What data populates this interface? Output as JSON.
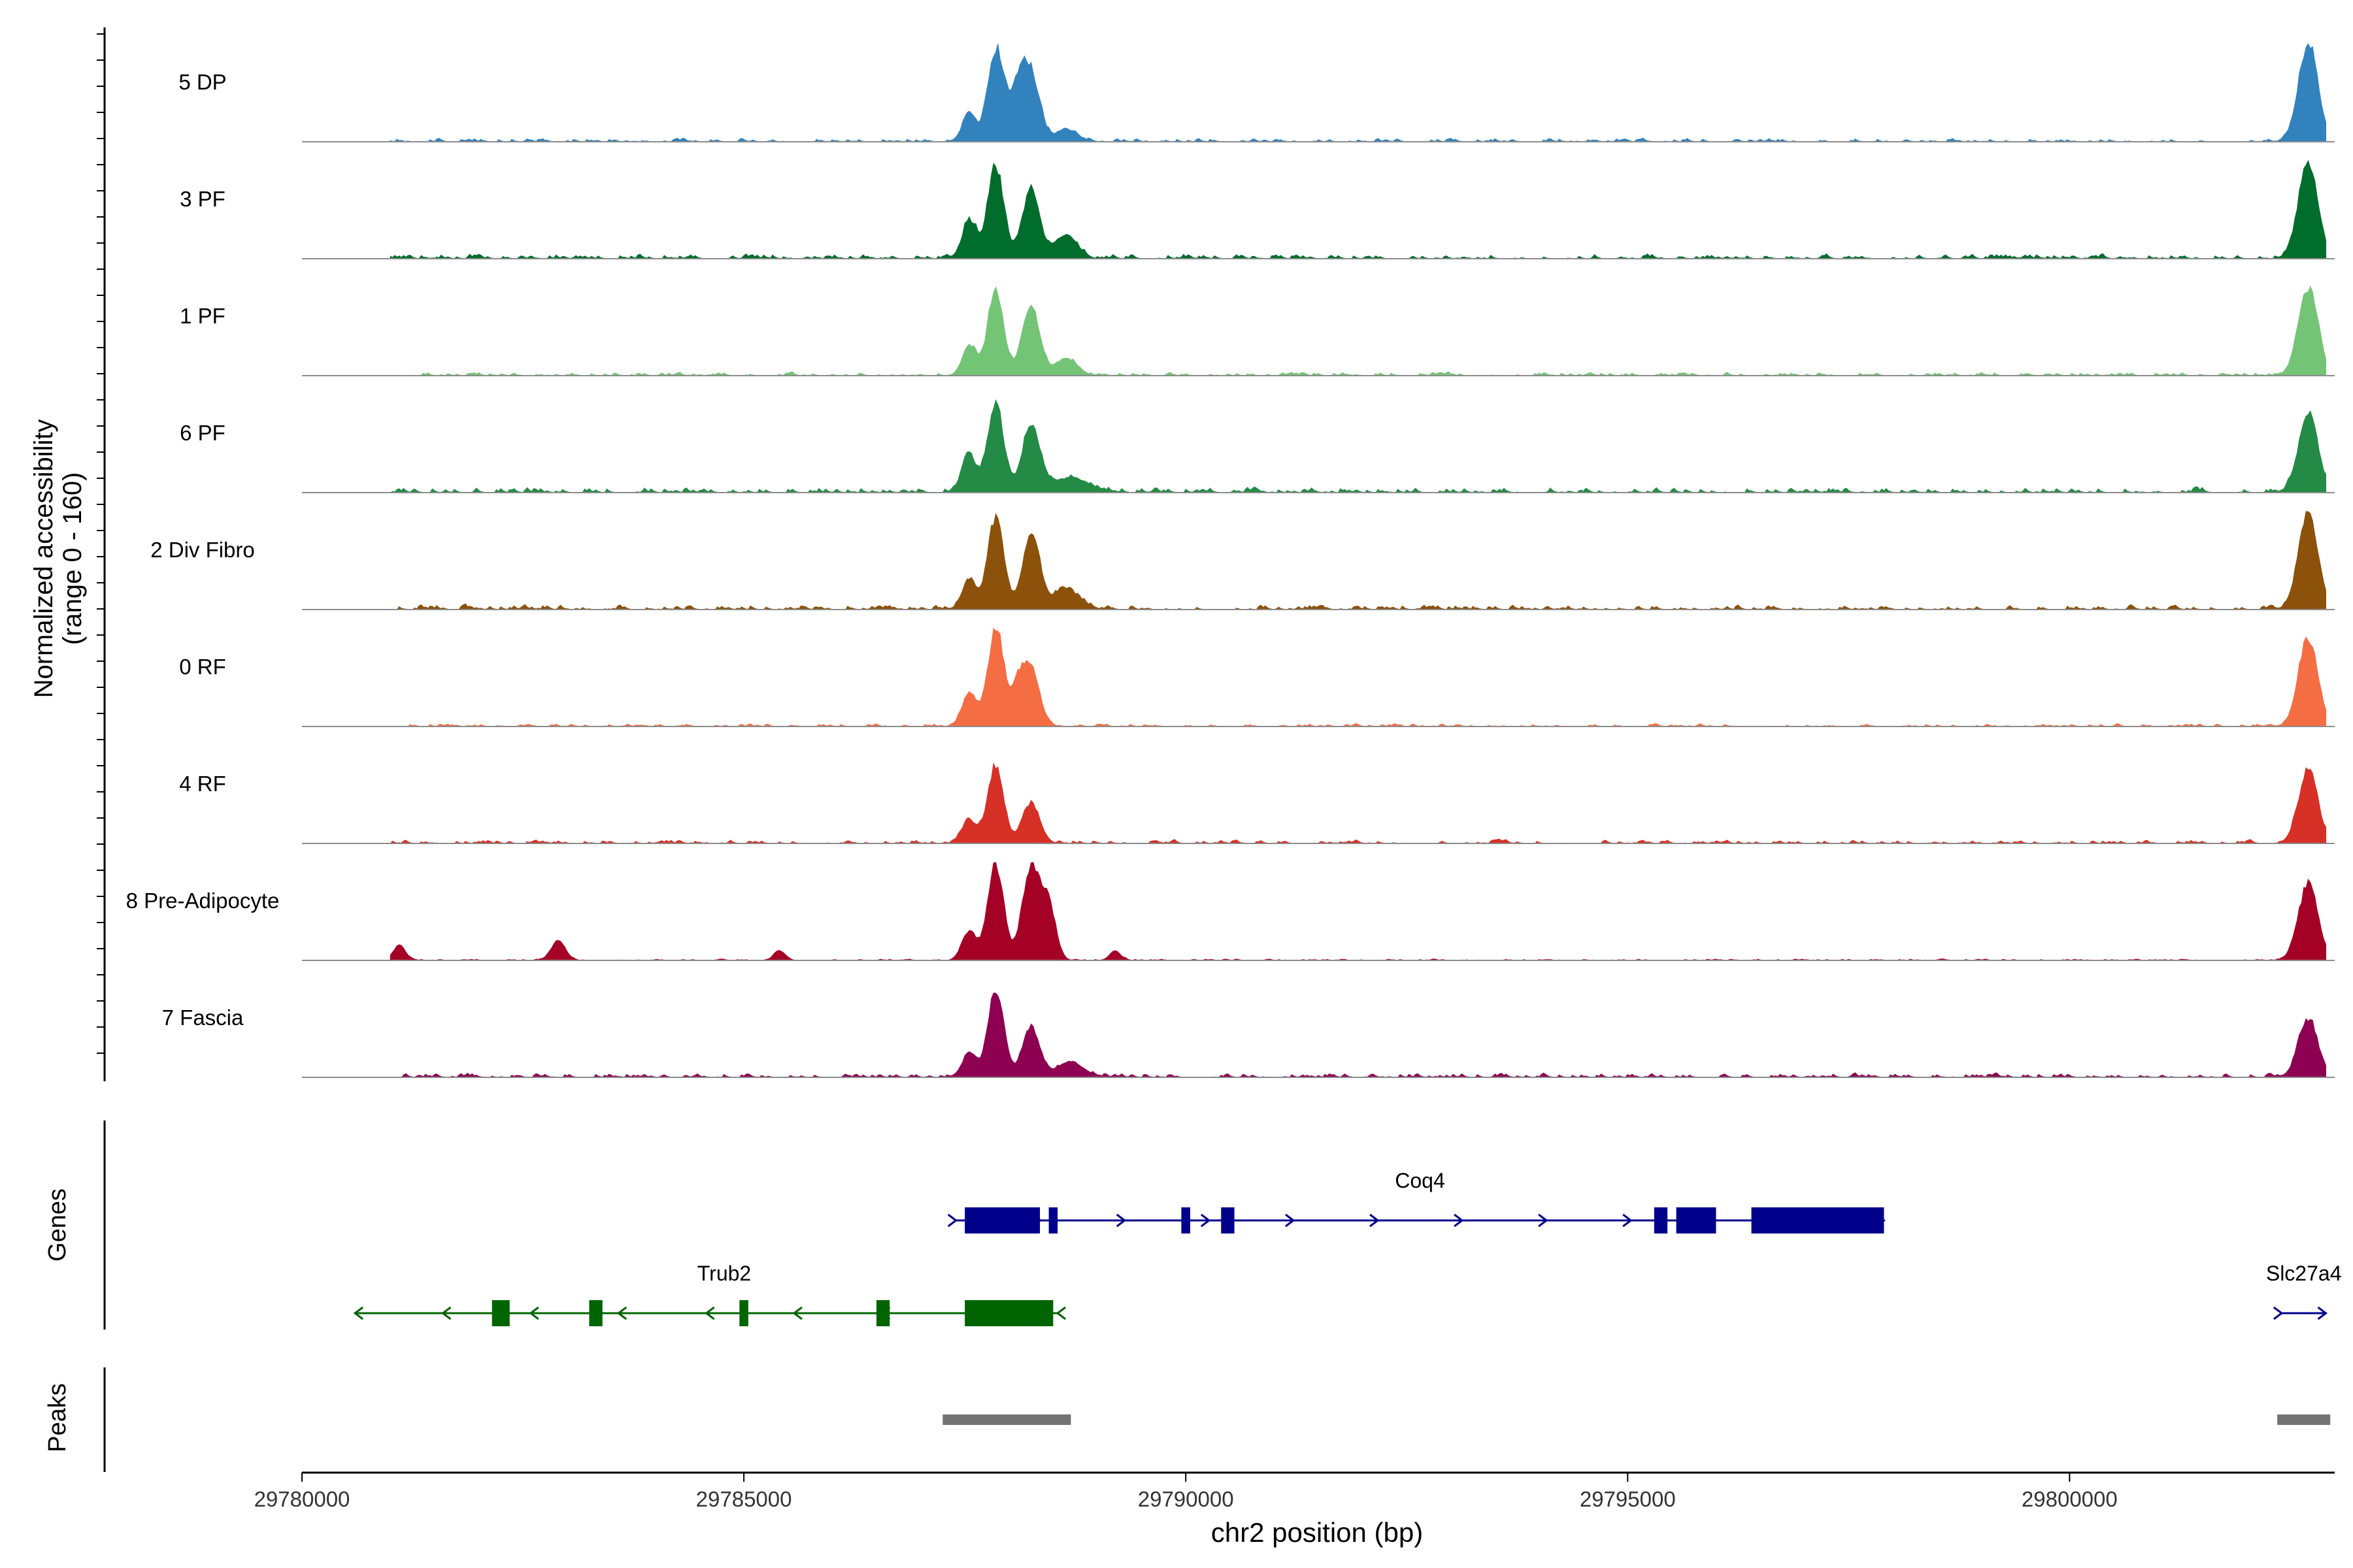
{
  "chart_data": {
    "type": "coverage",
    "region": "chr2",
    "xlabel": "chr2 position (bp)",
    "xlim": [
      29780000,
      29803000
    ],
    "xticks": [
      29780000,
      29785000,
      29790000,
      29795000,
      29800000
    ],
    "xtick_labels": [
      "29780000",
      "29785000",
      "29790000",
      "29795000",
      "29800000"
    ],
    "coverage_ylabel": "Normalized accessibility\n(range 0 - 160)",
    "ylim": [
      0,
      160
    ],
    "genes_label": "Genes",
    "peaks_label": "Peaks",
    "tracks": [
      {
        "label": "5 DP",
        "color": "#3182bd",
        "peaks": [
          [
            29787550,
            0.28,
            80
          ],
          [
            29787850,
            0.95,
            90
          ],
          [
            29788250,
            0.65,
            100
          ],
          [
            29788100,
            0.5,
            90
          ],
          [
            29788650,
            0.12,
            120
          ],
          [
            29802700,
            1.0,
            110
          ]
        ],
        "bg": 0.05
      },
      {
        "label": "3 PF",
        "color": "#006d2c",
        "peaks": [
          [
            29787550,
            0.4,
            80
          ],
          [
            29787850,
            0.95,
            90
          ],
          [
            29788250,
            0.7,
            100
          ],
          [
            29788650,
            0.25,
            120
          ],
          [
            29802700,
            1.0,
            110
          ]
        ],
        "bg": 0.07
      },
      {
        "label": "1 PF",
        "color": "#74c476",
        "peaks": [
          [
            29787550,
            0.3,
            80
          ],
          [
            29787850,
            0.88,
            90
          ],
          [
            29788250,
            0.7,
            100
          ],
          [
            29788650,
            0.18,
            120
          ],
          [
            29802700,
            0.9,
            110
          ]
        ],
        "bg": 0.05
      },
      {
        "label": "6 PF",
        "color": "#238b45",
        "peaks": [
          [
            29787550,
            0.4,
            80
          ],
          [
            29787850,
            0.9,
            90
          ],
          [
            29788250,
            0.7,
            100
          ],
          [
            29788700,
            0.15,
            200
          ],
          [
            29802700,
            0.8,
            110
          ]
        ],
        "bg": 0.08
      },
      {
        "label": "2 Div Fibro",
        "color": "#8c510a",
        "peaks": [
          [
            29787550,
            0.3,
            80
          ],
          [
            29787850,
            0.95,
            90
          ],
          [
            29788250,
            0.75,
            100
          ],
          [
            29788650,
            0.2,
            150
          ],
          [
            29802700,
            1.0,
            110
          ]
        ],
        "bg": 0.07
      },
      {
        "label": "0 RF",
        "color": "#f46d43",
        "peaks": [
          [
            29787550,
            0.35,
            80
          ],
          [
            29787850,
            1.0,
            90
          ],
          [
            29788250,
            0.55,
            100
          ],
          [
            29788100,
            0.35,
            80
          ],
          [
            29802700,
            0.9,
            110
          ]
        ],
        "bg": 0.04
      },
      {
        "label": "4 RF",
        "color": "#d73027",
        "peaks": [
          [
            29787550,
            0.25,
            80
          ],
          [
            29787850,
            0.8,
            90
          ],
          [
            29788250,
            0.4,
            100
          ],
          [
            29802700,
            0.75,
            110
          ]
        ],
        "bg": 0.05
      },
      {
        "label": "8 Pre-Adipocyte",
        "color": "#a50026",
        "peaks": [
          [
            29781100,
            0.15,
            70
          ],
          [
            29782900,
            0.2,
            80
          ],
          [
            29785400,
            0.1,
            60
          ],
          [
            29787550,
            0.3,
            80
          ],
          [
            29787850,
            0.98,
            90
          ],
          [
            29788250,
            0.95,
            100
          ],
          [
            29788450,
            0.55,
            80
          ],
          [
            29789200,
            0.1,
            60
          ],
          [
            29802700,
            0.78,
            110
          ]
        ],
        "bg": 0.02
      },
      {
        "label": "7 Fascia",
        "color": "#8e0152",
        "peaks": [
          [
            29787550,
            0.25,
            80
          ],
          [
            29787850,
            0.9,
            90
          ],
          [
            29788250,
            0.5,
            100
          ],
          [
            29788700,
            0.15,
            150
          ],
          [
            29802700,
            0.6,
            110
          ]
        ],
        "bg": 0.06
      }
    ],
    "genes": [
      {
        "name": "Coq4",
        "strand": "+",
        "color": "#00008b",
        "row": 1,
        "start": 29787400,
        "end": 29797900,
        "exons": [
          [
            29787500,
            29788350
          ],
          [
            29788450,
            29788550
          ],
          [
            29789950,
            29790050
          ],
          [
            29790400,
            29790550
          ],
          [
            29795300,
            29795450
          ],
          [
            29795550,
            29796000
          ],
          [
            29796400,
            29797900
          ]
        ]
      },
      {
        "name": "Trub2",
        "strand": "-",
        "color": "#006400",
        "row": 2,
        "start": 29780600,
        "end": 29788550,
        "exons": [
          [
            29782150,
            29782350
          ],
          [
            29783250,
            29783400
          ],
          [
            29784950,
            29785050
          ],
          [
            29786500,
            29786650
          ],
          [
            29787500,
            29788500
          ]
        ]
      },
      {
        "name": "Slc27a4",
        "strand": "+",
        "color": "#00008b",
        "row": 2,
        "start": 29802400,
        "end": 29802900,
        "exons": []
      }
    ],
    "peaks": [
      [
        29787250,
        29788700
      ],
      [
        29802350,
        29802950
      ]
    ]
  }
}
